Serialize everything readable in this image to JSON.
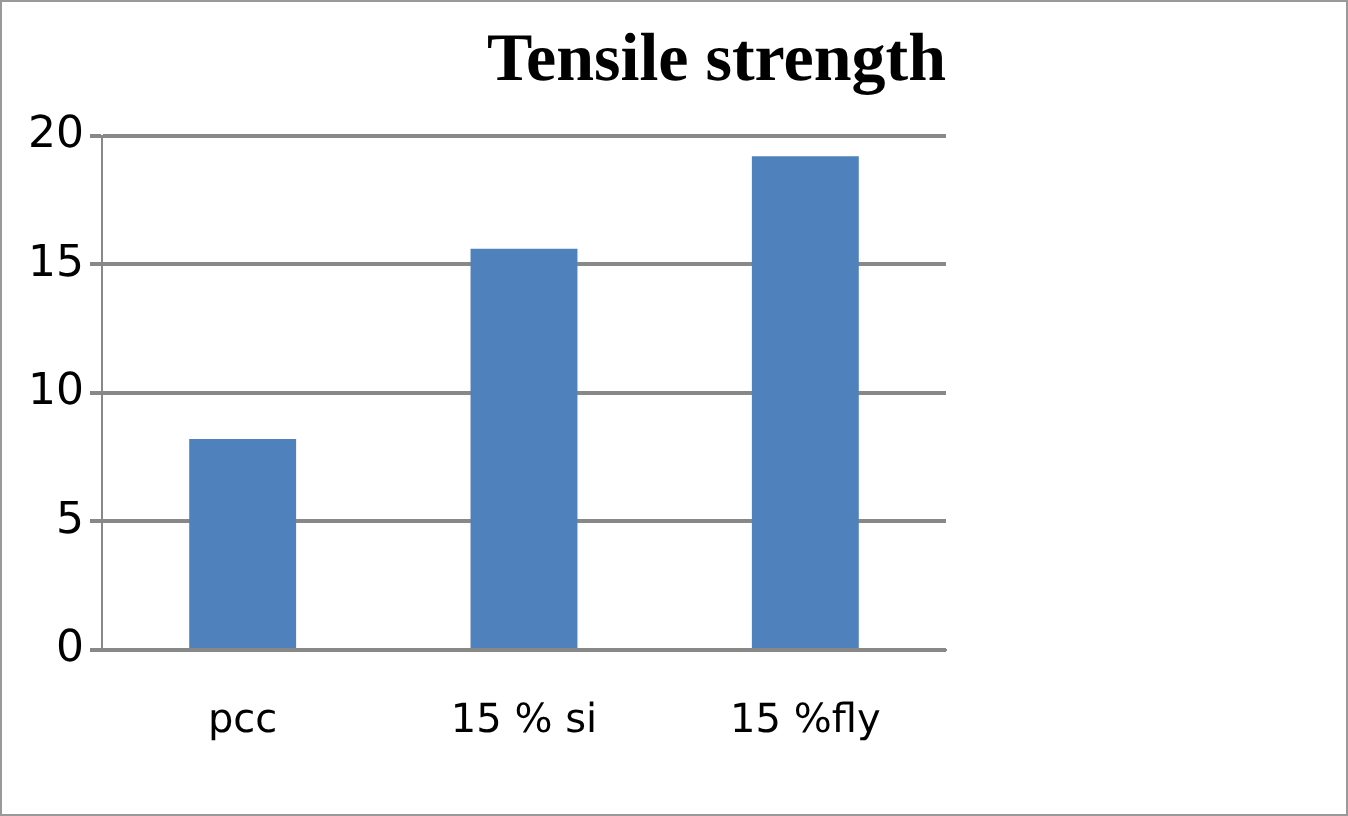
{
  "chart_data": {
    "type": "bar",
    "title": "Tensile strength",
    "categories": [
      "pcc",
      "15 % si",
      "15 %fly"
    ],
    "values": [
      8.2,
      15.6,
      19.2
    ],
    "color": "#4f81bd",
    "ylim": [
      0,
      20
    ],
    "yticks": [
      0,
      5,
      10,
      15,
      20
    ],
    "grid": "y",
    "legend": false
  }
}
